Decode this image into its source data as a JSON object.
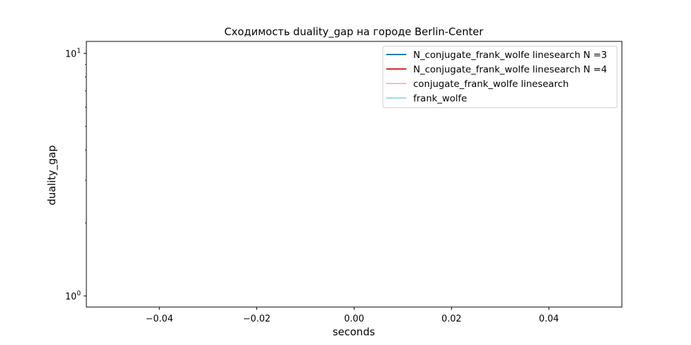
{
  "chart_data": {
    "type": "line",
    "title": "Сходимость duality_gap на городе Berlin-Center",
    "xlabel": "seconds",
    "ylabel": "duality_gap",
    "xlim": [
      -0.055,
      0.055
    ],
    "ylim": [
      0.9,
      11.2
    ],
    "yscale": "log",
    "grid": false,
    "legend_position": "top-right",
    "x_ticks": [
      {
        "value": -0.04,
        "label": "−0.04"
      },
      {
        "value": -0.02,
        "label": "−0.02"
      },
      {
        "value": 0.0,
        "label": "0.00"
      },
      {
        "value": 0.02,
        "label": "0.02"
      },
      {
        "value": 0.04,
        "label": "0.04"
      }
    ],
    "y_major_ticks": [
      {
        "value": 1,
        "base": "10",
        "exp": "0"
      },
      {
        "value": 10,
        "base": "10",
        "exp": "1"
      }
    ],
    "y_minor_ticks": [
      2,
      3,
      4,
      5,
      6,
      7,
      8,
      9
    ],
    "series": [
      {
        "name": "N_conjugate_frank_wolfe linesearch N =3",
        "color": "#1f77b4",
        "x": [],
        "y": []
      },
      {
        "name": "N_conjugate_frank_wolfe linesearch N =4",
        "color": "#d62728",
        "x": [],
        "y": []
      },
      {
        "name": "conjugate_frank_wolfe linesearch",
        "color": "#f7b6d2",
        "x": [],
        "y": []
      },
      {
        "name": "frank_wolfe",
        "color": "#9edae5",
        "x": [],
        "y": []
      }
    ]
  }
}
